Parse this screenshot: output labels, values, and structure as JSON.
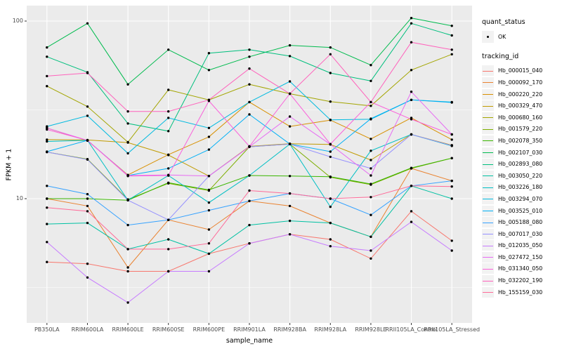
{
  "chart_data": {
    "type": "line",
    "title": "",
    "xlabel": "sample_name",
    "ylabel": "FPKM + 1",
    "y_scale": "log10",
    "y_ticks": [
      100,
      10
    ],
    "y_minor_breaks": [
      31.62,
      3.162
    ],
    "ylim": [
      2.2,
      120
    ],
    "grid": "on",
    "legend_position": "right",
    "panel_color": "#EBEBEB",
    "grid_color": "#FFFFFF",
    "point_color": "#000000",
    "categories": [
      "PB350LA",
      "RRIM600LA",
      "RRIM600LE",
      "RRIM600SE",
      "RRIM600PE",
      "RRIM901LA",
      "RRIM928BA",
      "RRIM928LA",
      "RRIM928LE",
      "RRII105LA_Control",
      "RRII105LA_Stressed"
    ],
    "legend": {
      "quant_status_title": "quant_status",
      "quant_status_items": [
        "OK"
      ],
      "tracking_title": "tracking_id"
    },
    "series": [
      {
        "name": "Hb_000015_040",
        "color": "#F8766D",
        "values": [
          4.4,
          4.3,
          3.9,
          3.9,
          4.9,
          5.6,
          6.3,
          5.9,
          4.6,
          8.5,
          5.8
        ]
      },
      {
        "name": "Hb_000092_170",
        "color": "#EA8331",
        "values": [
          10.0,
          9.1,
          4.1,
          7.6,
          6.7,
          9.7,
          9.1,
          7.3,
          6.1,
          14.8,
          12.6
        ]
      },
      {
        "name": "Hb_000220_220",
        "color": "#D89000",
        "values": [
          25.0,
          21.2,
          13.6,
          17.7,
          22.3,
          35.0,
          25.5,
          27.7,
          21.7,
          28.5,
          21.5
        ]
      },
      {
        "name": "Hb_000329_470",
        "color": "#C09B00",
        "values": [
          21.5,
          21.4,
          20.7,
          17.6,
          13.4,
          19.7,
          20.4,
          20.2,
          16.5,
          23.0,
          20.0
        ]
      },
      {
        "name": "Hb_000680_160",
        "color": "#A3A500",
        "values": [
          43.0,
          33.0,
          20.8,
          41.0,
          36.0,
          44.0,
          39.0,
          35.2,
          33.3,
          53.0,
          65.0
        ]
      },
      {
        "name": "Hb_001579_220",
        "color": "#7CAE00",
        "values": [
          18.3,
          16.7,
          9.9,
          12.2,
          11.1,
          19.6,
          20.3,
          13.2,
          12.0,
          14.8,
          16.9
        ]
      },
      {
        "name": "Hb_002078_350",
        "color": "#39B600",
        "values": [
          10.0,
          10.0,
          9.8,
          12.3,
          11.2,
          13.5,
          13.4,
          13.3,
          12.1,
          14.9,
          16.9
        ]
      },
      {
        "name": "Hb_002107_030",
        "color": "#00BB4E",
        "values": [
          71.0,
          97.0,
          44.0,
          69.0,
          53.0,
          63.0,
          73.0,
          71.0,
          56.5,
          104.0,
          94.0
        ]
      },
      {
        "name": "Hb_002893_080",
        "color": "#00BF7D",
        "values": [
          63.0,
          51.5,
          26.5,
          24.0,
          66.0,
          69.0,
          63.5,
          51.0,
          46.0,
          97.0,
          83.0
        ]
      },
      {
        "name": "Hb_003050_220",
        "color": "#00C1A3",
        "values": [
          7.2,
          7.3,
          5.2,
          5.9,
          4.9,
          7.1,
          7.5,
          7.3,
          6.1,
          11.8,
          10.0
        ]
      },
      {
        "name": "Hb_003226_180",
        "color": "#00BFC4",
        "values": [
          21.0,
          21.3,
          9.8,
          13.5,
          9.5,
          13.5,
          20.3,
          9.0,
          18.6,
          23.0,
          19.8
        ]
      },
      {
        "name": "Hb_003294_070",
        "color": "#00BAE0",
        "values": [
          25.5,
          29.3,
          18.0,
          28.5,
          25.0,
          35.0,
          45.7,
          27.8,
          28.0,
          36.0,
          35.0
        ]
      },
      {
        "name": "Hb_003525_010",
        "color": "#00B0F6",
        "values": [
          18.4,
          21.3,
          13.5,
          14.8,
          18.9,
          29.8,
          20.3,
          18.4,
          28.2,
          36.0,
          34.8
        ]
      },
      {
        "name": "Hb_005188_080",
        "color": "#35A2FF",
        "values": [
          11.8,
          10.6,
          7.1,
          7.6,
          8.6,
          9.7,
          10.7,
          10.0,
          8.1,
          11.8,
          12.6
        ]
      },
      {
        "name": "Hb_007017_030",
        "color": "#9590FF",
        "values": [
          18.3,
          16.6,
          9.8,
          7.6,
          13.4,
          19.6,
          20.3,
          17.2,
          14.8,
          23.0,
          19.9
        ]
      },
      {
        "name": "Hb_012035_050",
        "color": "#C77CFF",
        "values": [
          5.7,
          3.6,
          2.6,
          3.9,
          3.9,
          5.6,
          6.3,
          5.4,
          5.1,
          7.4,
          5.1
        ]
      },
      {
        "name": "Hb_027472_150",
        "color": "#E76BF3",
        "values": [
          25.0,
          21.3,
          13.5,
          13.6,
          13.4,
          19.6,
          29.0,
          20.2,
          13.5,
          40.0,
          23.0
        ]
      },
      {
        "name": "Hb_031340_050",
        "color": "#FA62DB",
        "values": [
          24.5,
          21.3,
          13.4,
          13.5,
          35.5,
          19.7,
          39.0,
          20.3,
          35.0,
          28.0,
          23.0
        ]
      },
      {
        "name": "Hb_032202_190",
        "color": "#FF62BC",
        "values": [
          49.0,
          51.0,
          31.0,
          31.0,
          36.0,
          54.0,
          39.0,
          65.0,
          35.0,
          76.0,
          69.0
        ]
      },
      {
        "name": "Hb_155159_030",
        "color": "#FF6A98",
        "values": [
          8.9,
          8.5,
          5.2,
          5.2,
          5.6,
          11.1,
          10.7,
          10.0,
          10.2,
          11.8,
          11.7
        ]
      }
    ]
  }
}
